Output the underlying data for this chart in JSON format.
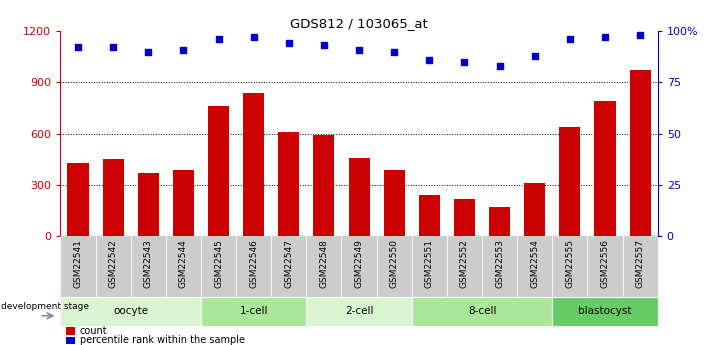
{
  "title": "GDS812 / 103065_at",
  "samples": [
    "GSM22541",
    "GSM22542",
    "GSM22543",
    "GSM22544",
    "GSM22545",
    "GSM22546",
    "GSM22547",
    "GSM22548",
    "GSM22549",
    "GSM22550",
    "GSM22551",
    "GSM22552",
    "GSM22553",
    "GSM22554",
    "GSM22555",
    "GSM22556",
    "GSM22557"
  ],
  "counts": [
    430,
    450,
    370,
    390,
    760,
    840,
    610,
    590,
    460,
    390,
    240,
    220,
    170,
    310,
    640,
    790,
    970
  ],
  "percentile": [
    92,
    92,
    90,
    91,
    96,
    97,
    94,
    93,
    91,
    90,
    86,
    85,
    83,
    88,
    96,
    97,
    98
  ],
  "bar_color": "#cc0000",
  "dot_color": "#0000cc",
  "ylim_left": [
    0,
    1200
  ],
  "ylim_right": [
    0,
    100
  ],
  "yticks_left": [
    0,
    300,
    600,
    900,
    1200
  ],
  "yticks_right": [
    0,
    25,
    50,
    75,
    100
  ],
  "ytick_labels_right": [
    "0",
    "25",
    "50",
    "75",
    "100%"
  ],
  "grid_lines": [
    300,
    600,
    900
  ],
  "stages": [
    {
      "label": "oocyte",
      "start": 0,
      "end": 4,
      "color": "#d8f5d0"
    },
    {
      "label": "1-cell",
      "start": 4,
      "end": 7,
      "color": "#a8e898"
    },
    {
      "label": "2-cell",
      "start": 7,
      "end": 10,
      "color": "#d8f5d0"
    },
    {
      "label": "8-cell",
      "start": 10,
      "end": 14,
      "color": "#a8e898"
    },
    {
      "label": "blastocyst",
      "start": 14,
      "end": 17,
      "color": "#66cc66"
    }
  ],
  "dev_stage_label": "development stage",
  "legend_count_label": "count",
  "legend_pct_label": "percentile rank within the sample",
  "bg_color": "#ffffff",
  "bar_width": 0.6,
  "label_bg_color": "#cccccc"
}
